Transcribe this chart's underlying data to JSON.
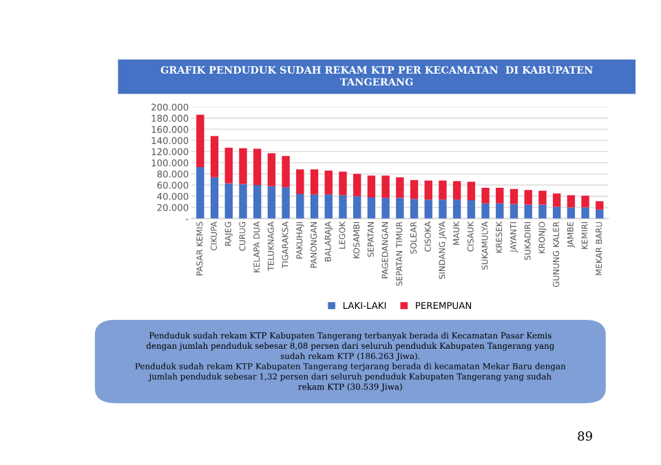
{
  "chart_data": {
    "type": "bar",
    "stacked": true,
    "title": "GRAFIK PENDUDUK SUDAH REKAM KTP PER KECAMATAN  DI KABUPATEN\nTANGERANG",
    "categories": [
      "PASAR KEMIS",
      "CIKUPA",
      "RAJEG",
      "CURUG",
      "KELAPA DUA",
      "TELUKNAGA",
      "TIGARAKSA",
      "PAKUHAJI",
      "PANONGAN",
      "BALARAJA",
      "LEGOK",
      "KOSAMBI",
      "SEPATAN",
      "PAGEDANGAN",
      "SEPATAN TIMUR",
      "SOLEAR",
      "CISOKA",
      "SINDANG JAYA",
      "MAUK",
      "CISAUK",
      "SUKAMULYA",
      "KRESEK",
      "JAYANTI",
      "SUKADIRI",
      "KRONJO",
      "GUNUNG KALER",
      "JAMBE",
      "KEMIRI",
      "MEKAR BARU"
    ],
    "series": [
      {
        "name": "LAKI-LAKI",
        "color": "#4472c4",
        "values": [
          92000,
          74000,
          63000,
          62000,
          60000,
          58000,
          56000,
          44000,
          43000,
          43000,
          42000,
          40000,
          38000,
          37000,
          37000,
          35000,
          34000,
          34000,
          34000,
          33000,
          27000,
          27000,
          26000,
          25000,
          25000,
          21000,
          20000,
          20000,
          16000
        ]
      },
      {
        "name": "PEREMPUAN",
        "color": "#e8203a",
        "values": [
          94000,
          74000,
          64000,
          64000,
          65000,
          59000,
          56000,
          44000,
          45000,
          43000,
          42000,
          40000,
          39000,
          40000,
          37000,
          34000,
          34000,
          34000,
          33000,
          33000,
          28000,
          28000,
          27000,
          26000,
          25000,
          24000,
          22000,
          21000,
          15000
        ]
      }
    ],
    "ylim": [
      0,
      200000
    ],
    "yticks": [
      {
        "value": 0,
        "label": "-"
      },
      {
        "value": 20000,
        "label": "20.000"
      },
      {
        "value": 40000,
        "label": "40.000"
      },
      {
        "value": 60000,
        "label": "60.000"
      },
      {
        "value": 80000,
        "label": "80.000"
      },
      {
        "value": 100000,
        "label": "100.000"
      },
      {
        "value": 120000,
        "label": "120.000"
      },
      {
        "value": 140000,
        "label": "140.000"
      },
      {
        "value": 160000,
        "label": "160.000"
      },
      {
        "value": 180000,
        "label": "180.000"
      },
      {
        "value": 200000,
        "label": "200.000"
      }
    ],
    "grid": "y",
    "legend": "bottom",
    "annotations": [
      "Penduduk sudah rekam KTP Kabupaten Tangerang terbanyak berada di Kecamatan Pasar Kemis\ndengan jumlah penduduk sebesar 8,08 persen dari seluruh penduduk Kabupaten Tangerang yang\nsudah rekam KTP (186.263 Jiwa).\nPenduduk sudah rekam KTP Kabupaten Tangerang terjarang berada di kecamatan Mekar Baru dengan\njumlah penduduk sebesar 1,32 persen dari seluruh penduduk Kabupaten Tangerang yang sudah\nrekam KTP (30.539 Jiwa)",
      "89"
    ]
  }
}
